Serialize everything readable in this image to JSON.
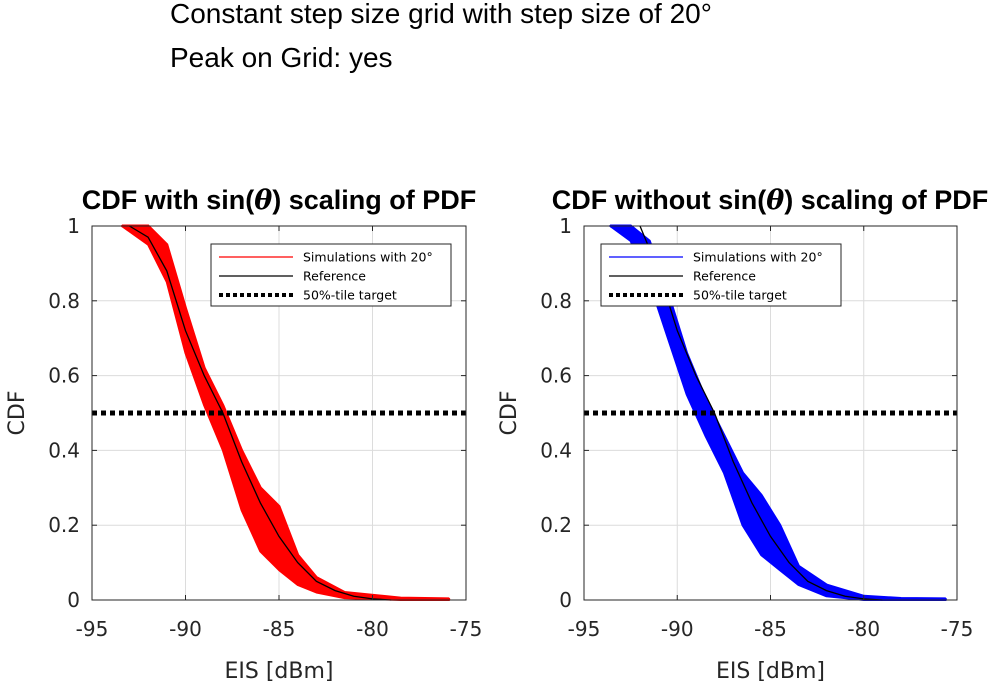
{
  "suptitle": {
    "line1": "Constant step size grid with step size of 20°",
    "line2": "Peak on Grid: yes"
  },
  "chart_data": [
    {
      "type": "line",
      "title_prefix": "CDF with sin(",
      "title_symbol": "θ",
      "title_suffix": ") scaling of PDF",
      "xlabel": "EIS [dBm]",
      "ylabel": "CDF",
      "xlim": [
        -95,
        -75
      ],
      "ylim": [
        0,
        1
      ],
      "xticks": [
        "-95",
        "-90",
        "-85",
        "-80",
        "-75"
      ],
      "yticks": [
        "0",
        "0.2",
        "0.4",
        "0.6",
        "0.8",
        "1"
      ],
      "grid": true,
      "legend_position": "top-right",
      "series": [
        {
          "name": "Simulations with 20°",
          "color": "#ff0000",
          "style": "band",
          "x": [
            -93.4,
            -92.0,
            -91.0,
            -90.0,
            -89.0,
            -88.0,
            -87.0,
            -86.0,
            -85.0,
            -84.0,
            -83.0,
            -81.5,
            -78.5,
            -75.9
          ],
          "y_low": [
            1.0,
            0.95,
            0.85,
            0.66,
            0.52,
            0.4,
            0.24,
            0.13,
            0.08,
            0.04,
            0.02,
            0.005,
            0.0,
            0.0
          ],
          "y_high": [
            1.0,
            1.0,
            0.95,
            0.78,
            0.62,
            0.52,
            0.4,
            0.3,
            0.25,
            0.12,
            0.06,
            0.02,
            0.005,
            0.003
          ]
        },
        {
          "name": "Reference",
          "color": "#000000",
          "style": "solid",
          "x": [
            -93.0,
            -92.0,
            -91.0,
            -90.0,
            -89.0,
            -88.0,
            -87.0,
            -86.0,
            -85.0,
            -84.0,
            -83.0,
            -82.0,
            -81.0,
            -80.0,
            -79.0
          ],
          "y": [
            1.0,
            0.97,
            0.88,
            0.72,
            0.6,
            0.5,
            0.37,
            0.26,
            0.17,
            0.1,
            0.05,
            0.025,
            0.01,
            0.003,
            0.0
          ]
        },
        {
          "name": "50%-tile target",
          "color": "#000000",
          "style": "dotted",
          "x": [
            -95,
            -75
          ],
          "y": [
            0.5,
            0.5
          ]
        }
      ]
    },
    {
      "type": "line",
      "title_prefix": "CDF without sin(",
      "title_symbol": "θ",
      "title_suffix": ") scaling of PDF",
      "xlabel": "EIS [dBm]",
      "ylabel": "CDF",
      "xlim": [
        -95,
        -75
      ],
      "ylim": [
        0,
        1
      ],
      "xticks": [
        "-95",
        "-90",
        "-85",
        "-80",
        "-75"
      ],
      "yticks": [
        "0",
        "0.2",
        "0.4",
        "0.6",
        "0.8",
        "1"
      ],
      "grid": true,
      "legend_position": "top-right",
      "series": [
        {
          "name": "Simulations with 20°",
          "color": "#0000ff",
          "style": "band",
          "x": [
            -93.6,
            -92.5,
            -91.5,
            -90.5,
            -89.5,
            -88.5,
            -87.5,
            -86.5,
            -85.5,
            -84.5,
            -83.5,
            -82.0,
            -80.0,
            -78.0,
            -75.6
          ],
          "y_low": [
            1.0,
            0.96,
            0.85,
            0.7,
            0.55,
            0.44,
            0.34,
            0.2,
            0.12,
            0.08,
            0.04,
            0.01,
            0.0,
            0.0,
            0.0
          ],
          "y_high": [
            1.0,
            1.0,
            0.96,
            0.82,
            0.66,
            0.54,
            0.44,
            0.34,
            0.28,
            0.2,
            0.09,
            0.04,
            0.01,
            0.004,
            0.003
          ]
        },
        {
          "name": "Reference",
          "color": "#000000",
          "style": "solid",
          "x": [
            -92.0,
            -91.0,
            -90.0,
            -89.0,
            -88.0,
            -87.0,
            -86.0,
            -85.0,
            -84.0,
            -83.0,
            -82.0,
            -81.0,
            -80.0,
            -79.0
          ],
          "y": [
            1.0,
            0.88,
            0.72,
            0.6,
            0.5,
            0.37,
            0.26,
            0.17,
            0.1,
            0.05,
            0.025,
            0.01,
            0.003,
            0.0
          ]
        },
        {
          "name": "50%-tile target",
          "color": "#000000",
          "style": "dotted",
          "x": [
            -95,
            -75
          ],
          "y": [
            0.5,
            0.5
          ]
        }
      ]
    }
  ]
}
